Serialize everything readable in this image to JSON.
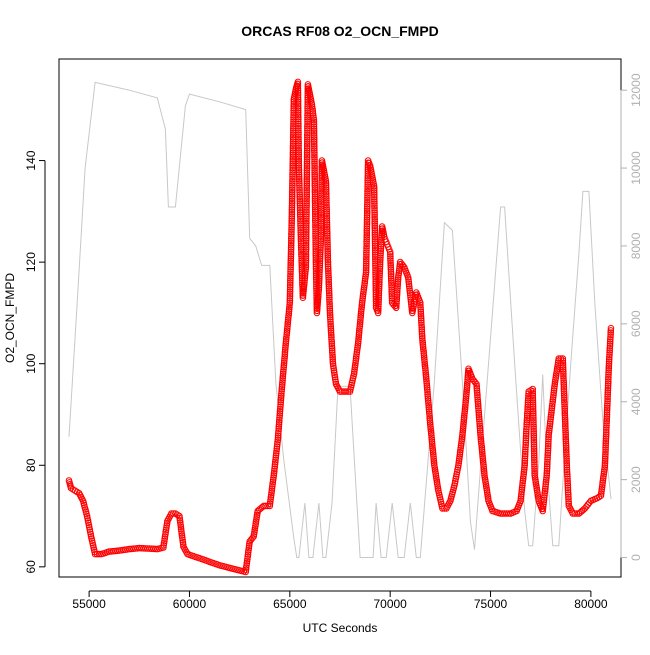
{
  "chart_data": {
    "type": "scatter",
    "title": "ORCAS RF08 O2_OCN_FMPD",
    "xlabel": "UTC Seconds",
    "ylabel": "O2_OCN_FMPD",
    "xlim": [
      53500,
      81500
    ],
    "ylim": [
      58,
      160
    ],
    "y2lim": [
      -500,
      12800
    ],
    "xticks": [
      55000,
      60000,
      65000,
      70000,
      75000,
      80000
    ],
    "yticks": [
      60,
      80,
      100,
      120,
      140
    ],
    "y2ticks": [
      0,
      2000,
      4000,
      6000,
      8000,
      10000,
      12000
    ],
    "grid": false,
    "colors": {
      "primary": "#ff0000",
      "secondary": "#c8c8c8",
      "axis": "#000000",
      "secondary_axis": "#b0b0b0"
    },
    "series": [
      {
        "marker": "open-circle",
        "color": "#ff0000",
        "points": [
          [
            54000,
            77
          ],
          [
            54100,
            75.5
          ],
          [
            54300,
            75
          ],
          [
            54500,
            74.5
          ],
          [
            54700,
            73
          ],
          [
            54900,
            70
          ],
          [
            55100,
            66
          ],
          [
            55300,
            62.5
          ],
          [
            55600,
            62.5
          ],
          [
            56000,
            63
          ],
          [
            56500,
            63.2
          ],
          [
            57000,
            63.5
          ],
          [
            57500,
            63.7
          ],
          [
            58000,
            63.6
          ],
          [
            58400,
            63.5
          ],
          [
            58700,
            63.8
          ],
          [
            58900,
            69
          ],
          [
            59100,
            70.5
          ],
          [
            59300,
            70.5
          ],
          [
            59500,
            70
          ],
          [
            59700,
            64
          ],
          [
            59900,
            62.5
          ],
          [
            60500,
            61.7
          ],
          [
            61000,
            61
          ],
          [
            61500,
            60.3
          ],
          [
            62000,
            59.8
          ],
          [
            62500,
            59.3
          ],
          [
            62800,
            59
          ],
          [
            63000,
            65
          ],
          [
            63200,
            66
          ],
          [
            63400,
            71
          ],
          [
            63700,
            72
          ],
          [
            64000,
            72
          ],
          [
            64200,
            78
          ],
          [
            64400,
            85
          ],
          [
            64600,
            95
          ],
          [
            64800,
            104
          ],
          [
            65000,
            112
          ],
          [
            65100,
            129
          ],
          [
            65200,
            152
          ],
          [
            65300,
            154
          ],
          [
            65400,
            155.5
          ],
          [
            65450,
            139
          ],
          [
            65550,
            125
          ],
          [
            65650,
            113
          ],
          [
            65800,
            119
          ],
          [
            65900,
            155
          ],
          [
            66000,
            153
          ],
          [
            66100,
            151
          ],
          [
            66200,
            148
          ],
          [
            66300,
            120
          ],
          [
            66350,
            110
          ],
          [
            66450,
            115
          ],
          [
            66550,
            125
          ],
          [
            66600,
            140
          ],
          [
            66700,
            138
          ],
          [
            66800,
            136
          ],
          [
            66900,
            120
          ],
          [
            67000,
            110
          ],
          [
            67150,
            100
          ],
          [
            67300,
            96
          ],
          [
            67500,
            94.5
          ],
          [
            68000,
            94.5
          ],
          [
            68200,
            98
          ],
          [
            68400,
            104
          ],
          [
            68600,
            112
          ],
          [
            68800,
            118
          ],
          [
            68900,
            140
          ],
          [
            69000,
            139
          ],
          [
            69100,
            137
          ],
          [
            69200,
            135
          ],
          [
            69300,
            111
          ],
          [
            69400,
            110
          ],
          [
            69500,
            120
          ],
          [
            69600,
            127
          ],
          [
            69700,
            125
          ],
          [
            69800,
            124
          ],
          [
            69900,
            123
          ],
          [
            70000,
            122
          ],
          [
            70100,
            112
          ],
          [
            70300,
            111
          ],
          [
            70400,
            117
          ],
          [
            70500,
            120
          ],
          [
            70700,
            119
          ],
          [
            70900,
            117
          ],
          [
            71100,
            110
          ],
          [
            71300,
            114
          ],
          [
            71500,
            112
          ],
          [
            71600,
            105
          ],
          [
            71800,
            97
          ],
          [
            72000,
            88
          ],
          [
            72200,
            80
          ],
          [
            72400,
            75
          ],
          [
            72600,
            71.5
          ],
          [
            72800,
            71.5
          ],
          [
            73000,
            73
          ],
          [
            73200,
            76
          ],
          [
            73400,
            80
          ],
          [
            73600,
            86
          ],
          [
            73800,
            94
          ],
          [
            73900,
            99
          ],
          [
            74100,
            97
          ],
          [
            74300,
            96
          ],
          [
            74500,
            86
          ],
          [
            74700,
            78
          ],
          [
            74900,
            73
          ],
          [
            75100,
            71
          ],
          [
            75500,
            70.5
          ],
          [
            76000,
            70.5
          ],
          [
            76300,
            71
          ],
          [
            76500,
            73
          ],
          [
            76700,
            80
          ],
          [
            76800,
            88
          ],
          [
            76900,
            94.5
          ],
          [
            77100,
            95
          ],
          [
            77200,
            78
          ],
          [
            77400,
            73
          ],
          [
            77600,
            71
          ],
          [
            77800,
            78
          ],
          [
            77900,
            86
          ],
          [
            78200,
            96
          ],
          [
            78400,
            101
          ],
          [
            78600,
            101
          ],
          [
            78800,
            80
          ],
          [
            78900,
            72
          ],
          [
            79100,
            70.5
          ],
          [
            79400,
            70.5
          ],
          [
            79700,
            71.5
          ],
          [
            80000,
            73
          ],
          [
            80300,
            73.5
          ],
          [
            80500,
            74
          ],
          [
            80700,
            80
          ],
          [
            80900,
            100
          ],
          [
            81000,
            107
          ]
        ]
      },
      {
        "marker": "line",
        "color": "#c8c8c8",
        "points": [
          [
            54000,
            3100
          ],
          [
            54400,
            6500
          ],
          [
            54800,
            10000
          ],
          [
            55300,
            12200
          ],
          [
            57000,
            12000
          ],
          [
            58400,
            11800
          ],
          [
            58800,
            11000
          ],
          [
            58950,
            9000
          ],
          [
            59300,
            9000
          ],
          [
            59800,
            11600
          ],
          [
            60000,
            11900
          ],
          [
            61500,
            11700
          ],
          [
            62800,
            11500
          ],
          [
            63000,
            8200
          ],
          [
            63300,
            8000
          ],
          [
            63600,
            7500
          ],
          [
            64000,
            7500
          ],
          [
            64300,
            4500
          ],
          [
            64700,
            2500
          ],
          [
            65200,
            500
          ],
          [
            65350,
            0
          ],
          [
            65450,
            0
          ],
          [
            65750,
            1400
          ],
          [
            65950,
            0
          ],
          [
            66150,
            0
          ],
          [
            66450,
            1400
          ],
          [
            66650,
            0
          ],
          [
            66800,
            0
          ],
          [
            67100,
            1400
          ],
          [
            67400,
            4400
          ],
          [
            68000,
            4400
          ],
          [
            68500,
            0
          ],
          [
            68600,
            0
          ],
          [
            69150,
            0
          ],
          [
            69300,
            1400
          ],
          [
            69550,
            0
          ],
          [
            69800,
            0
          ],
          [
            70100,
            1400
          ],
          [
            70400,
            0
          ],
          [
            70700,
            0
          ],
          [
            71000,
            1400
          ],
          [
            71300,
            0
          ],
          [
            71500,
            0
          ],
          [
            72200,
            4500
          ],
          [
            72700,
            8600
          ],
          [
            73100,
            8400
          ],
          [
            73600,
            4500
          ],
          [
            74000,
            900
          ],
          [
            74200,
            200
          ],
          [
            74500,
            2300
          ],
          [
            74800,
            4300
          ],
          [
            75200,
            7000
          ],
          [
            75500,
            9000
          ],
          [
            75700,
            9000
          ],
          [
            76200,
            5000
          ],
          [
            76700,
            1200
          ],
          [
            76900,
            300
          ],
          [
            77100,
            300
          ],
          [
            77400,
            2400
          ],
          [
            77600,
            4700
          ],
          [
            77800,
            2400
          ],
          [
            78100,
            300
          ],
          [
            78400,
            300
          ],
          [
            78700,
            2700
          ],
          [
            79000,
            5000
          ],
          [
            79400,
            7800
          ],
          [
            79600,
            9400
          ],
          [
            79900,
            9400
          ],
          [
            80200,
            6500
          ],
          [
            80600,
            3500
          ],
          [
            81000,
            1500
          ]
        ]
      }
    ]
  }
}
